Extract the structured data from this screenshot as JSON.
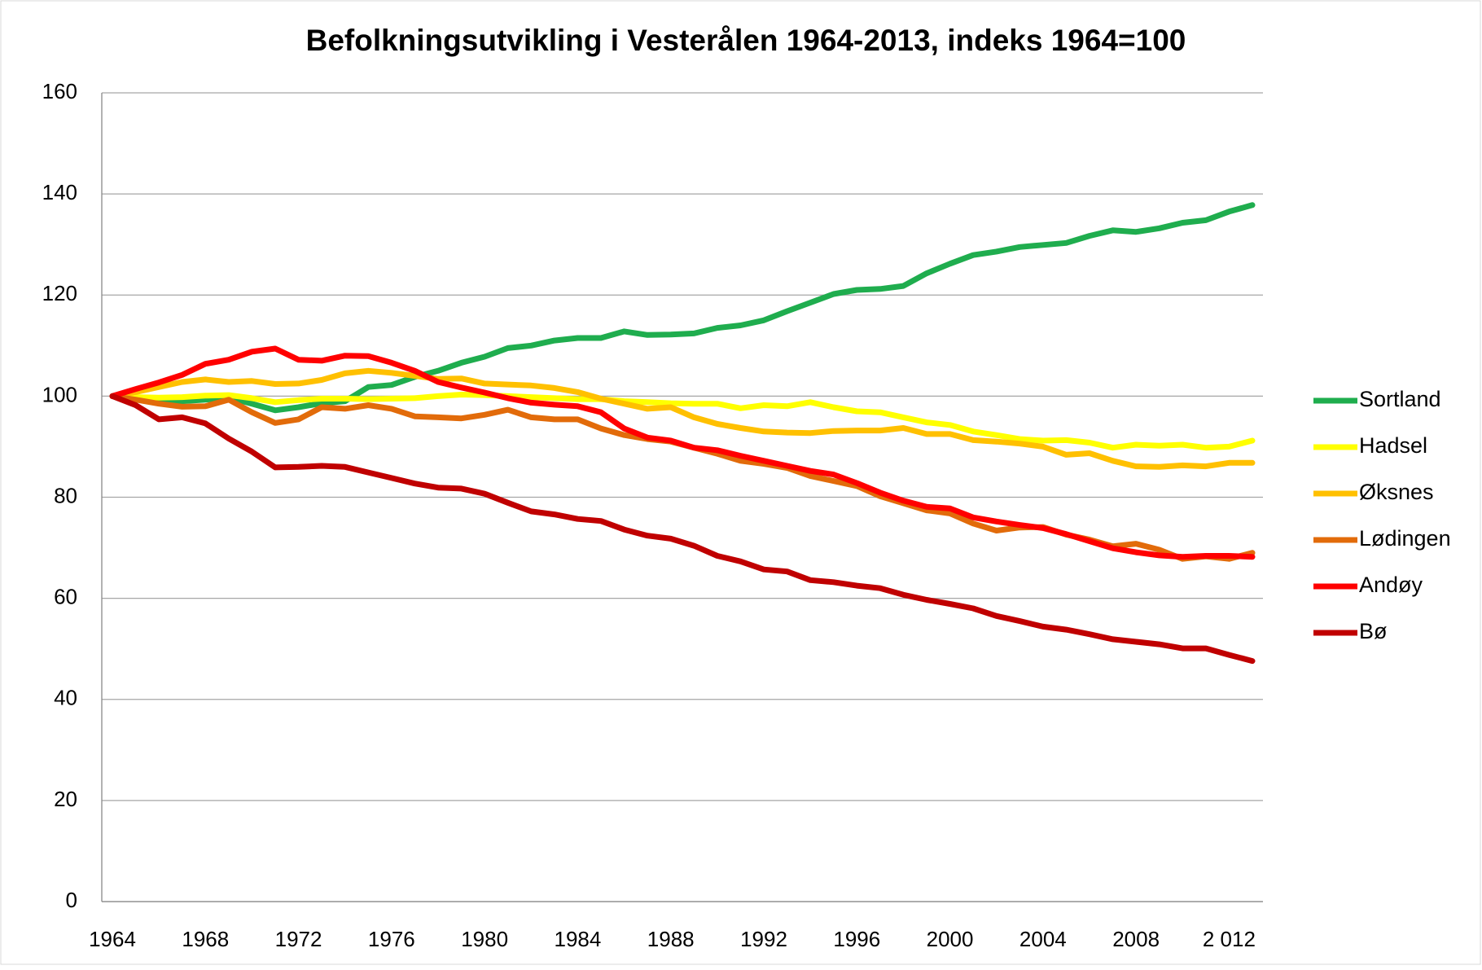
{
  "chart_data": {
    "type": "line",
    "title": "Befolkningsutvikling i Vesterålen 1964-2013, indeks 1964=100",
    "categories": [
      "1964",
      null,
      null,
      null,
      "1968",
      null,
      null,
      null,
      "1972",
      null,
      null,
      null,
      "1976",
      null,
      null,
      null,
      "1980",
      null,
      null,
      null,
      "1984",
      null,
      null,
      null,
      "1988",
      null,
      null,
      null,
      "1992",
      null,
      null,
      null,
      "1996",
      null,
      null,
      null,
      "2000",
      null,
      null,
      null,
      "2004",
      null,
      null,
      null,
      "2008",
      null,
      null,
      null,
      "2 012",
      null
    ],
    "ylim": [
      0,
      160
    ],
    "yticks": [
      0,
      20,
      40,
      60,
      80,
      100,
      120,
      140,
      160
    ],
    "grid": true,
    "legend": "right",
    "series": [
      {
        "name": "Sortland",
        "color": "#1fad4e",
        "values": [
          100,
          99.5,
          99,
          99,
          99.3,
          99.7,
          98.5,
          97.2,
          97.8,
          98.6,
          99,
          101.8,
          102.2,
          103.8,
          105,
          106.6,
          107.8,
          109.5,
          110,
          111,
          111.5,
          111.5,
          112.8,
          112.1,
          112.2,
          112.4,
          113.5,
          114,
          115,
          116.8,
          118.5,
          120.2,
          121,
          121.2,
          121.8,
          124.3,
          126.2,
          127.9,
          128.6,
          129.5,
          129.9,
          130.3,
          131.7,
          132.8,
          132.5,
          133.2,
          134.3,
          134.8,
          136.5,
          137.8
        ]
      },
      {
        "name": "Hadsel",
        "color": "#ffff00",
        "values": [
          100,
          99.8,
          99.7,
          99.8,
          100.1,
          100.2,
          99.6,
          98.8,
          99.2,
          99.5,
          99.5,
          99.4,
          99.5,
          99.6,
          100,
          100.3,
          100.2,
          100,
          99.8,
          99.6,
          99.4,
          99.4,
          99,
          98.8,
          98.6,
          98.5,
          98.5,
          97.6,
          98.2,
          98,
          98.8,
          97.8,
          97,
          96.8,
          95.8,
          94.8,
          94.3,
          93,
          92.3,
          91.5,
          91.2,
          91.3,
          90.8,
          89.8,
          90.4,
          90.2,
          90.4,
          89.8,
          90,
          91.2
        ]
      },
      {
        "name": "Øksnes",
        "color": "#ffc000",
        "values": [
          100,
          100.8,
          101.8,
          102.8,
          103.3,
          102.8,
          103,
          102.4,
          102.5,
          103.2,
          104.5,
          105,
          104.6,
          104,
          103.4,
          103.5,
          102.5,
          102.3,
          102.1,
          101.6,
          100.8,
          99.5,
          98.5,
          97.5,
          97.8,
          95.8,
          94.5,
          93.7,
          93,
          92.8,
          92.7,
          93.1,
          93.2,
          93.2,
          93.7,
          92.5,
          92.5,
          91.3,
          91,
          90.6,
          90,
          88.4,
          88.7,
          87.2,
          86.1,
          86,
          86.3,
          86.1,
          86.8,
          86.8
        ]
      },
      {
        "name": "Lødingen",
        "color": "#e26b0a",
        "values": [
          100,
          99.3,
          98.5,
          97.9,
          98,
          99.3,
          96.8,
          94.7,
          95.4,
          97.8,
          97.5,
          98.2,
          97.5,
          96,
          95.8,
          95.6,
          96.3,
          97.3,
          95.8,
          95.4,
          95.4,
          93.6,
          92.3,
          91.5,
          91,
          89.8,
          88.6,
          87.2,
          86.6,
          85.8,
          84.2,
          83.2,
          82.2,
          80.2,
          78.8,
          77.4,
          76.8,
          74.8,
          73.4,
          74,
          74.1,
          72.6,
          71.6,
          70.3,
          70.8,
          69.6,
          67.8,
          68.3,
          67.8,
          69
        ]
      },
      {
        "name": "Andøy",
        "color": "#ff0000",
        "values": [
          100,
          101.4,
          102.7,
          104.2,
          106.4,
          107.2,
          108.8,
          109.4,
          107.2,
          107,
          108,
          107.9,
          106.6,
          105,
          102.8,
          101.7,
          100.7,
          99.6,
          98.7,
          98.3,
          98,
          96.8,
          93.6,
          91.8,
          91.2,
          89.8,
          89.3,
          88.2,
          87.2,
          86.2,
          85.2,
          84.5,
          82.8,
          80.9,
          79.3,
          78.1,
          77.8,
          76,
          75.2,
          74.5,
          73.9,
          72.7,
          71.3,
          69.9,
          69.1,
          68.5,
          68.2,
          68.4,
          68.4,
          68.2
        ]
      },
      {
        "name": "Bø",
        "color": "#c00000",
        "values": [
          100,
          98.2,
          95.4,
          95.8,
          94.6,
          91.6,
          89,
          85.9,
          86,
          86.2,
          86,
          84.9,
          83.8,
          82.7,
          81.9,
          81.7,
          80.7,
          78.9,
          77.2,
          76.6,
          75.7,
          75.3,
          73.6,
          72.4,
          71.8,
          70.4,
          68.4,
          67.3,
          65.7,
          65.3,
          63.6,
          63.2,
          62.5,
          62,
          60.7,
          59.7,
          58.9,
          58,
          56.5,
          55.5,
          54.4,
          53.8,
          52.9,
          51.9,
          51.4,
          50.9,
          50.1,
          50.1,
          48.8,
          47.6
        ]
      }
    ]
  }
}
